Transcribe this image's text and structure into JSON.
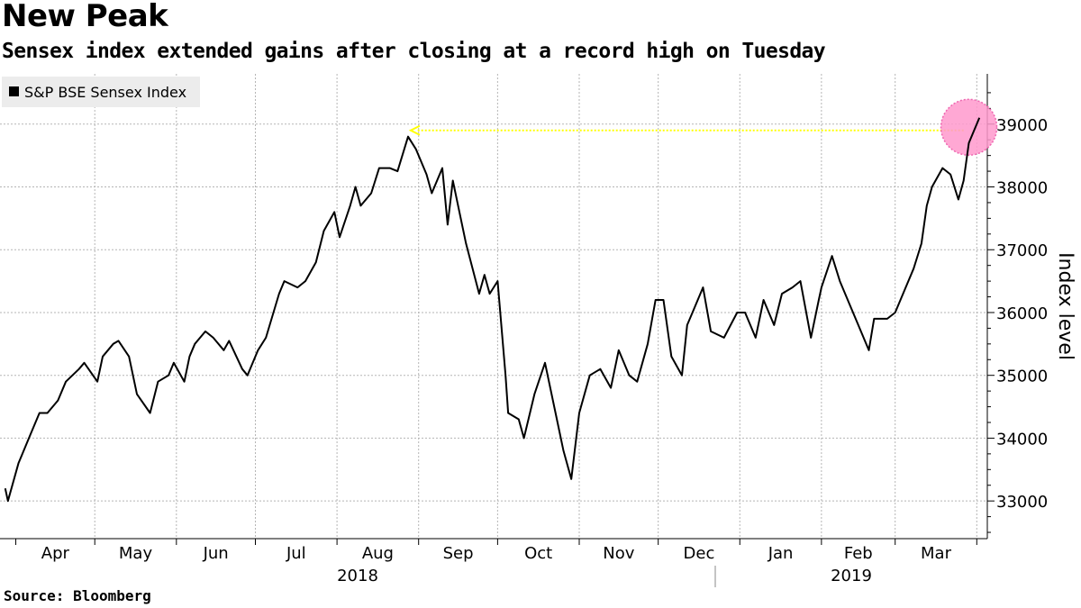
{
  "header": {
    "title": "New Peak",
    "subtitle": "Sensex index extended gains after closing at a record high on Tuesday"
  },
  "footer": {
    "source": "Source: Bloomberg"
  },
  "chart_data": {
    "type": "line",
    "title": "New Peak",
    "subtitle": "Sensex index extended gains after closing at a record high on Tuesday",
    "ylabel": "Index level",
    "xlabel": "",
    "ylim": [
      32400,
      39800
    ],
    "yticks": [
      33000,
      34000,
      35000,
      36000,
      37000,
      38000,
      39000
    ],
    "grid": true,
    "legend_position": "top-left",
    "months": [
      "Apr",
      "May",
      "Jun",
      "Jul",
      "Aug",
      "Sep",
      "Oct",
      "Nov",
      "Dec",
      "Jan",
      "Feb",
      "Mar"
    ],
    "years": [
      "2018",
      "2019"
    ],
    "series": [
      {
        "name": "S&P BSE Sensex Index",
        "color": "#000000",
        "x": [
          "2018-03-28",
          "2018-03-29",
          "2018-04-02",
          "2018-04-04",
          "2018-04-06",
          "2018-04-10",
          "2018-04-13",
          "2018-04-17",
          "2018-04-20",
          "2018-04-25",
          "2018-04-27",
          "2018-05-02",
          "2018-05-04",
          "2018-05-08",
          "2018-05-10",
          "2018-05-14",
          "2018-05-17",
          "2018-05-22",
          "2018-05-25",
          "2018-05-29",
          "2018-05-31",
          "2018-06-04",
          "2018-06-06",
          "2018-06-08",
          "2018-06-12",
          "2018-06-15",
          "2018-06-19",
          "2018-06-21",
          "2018-06-26",
          "2018-06-28",
          "2018-07-02",
          "2018-07-05",
          "2018-07-10",
          "2018-07-12",
          "2018-07-17",
          "2018-07-20",
          "2018-07-24",
          "2018-07-27",
          "2018-07-31",
          "2018-08-02",
          "2018-08-06",
          "2018-08-08",
          "2018-08-10",
          "2018-08-14",
          "2018-08-17",
          "2018-08-21",
          "2018-08-24",
          "2018-08-28",
          "2018-08-31",
          "2018-09-04",
          "2018-09-06",
          "2018-09-10",
          "2018-09-12",
          "2018-09-14",
          "2018-09-19",
          "2018-09-24",
          "2018-09-26",
          "2018-09-28",
          "2018-10-01",
          "2018-10-04",
          "2018-10-05",
          "2018-10-09",
          "2018-10-11",
          "2018-10-15",
          "2018-10-19",
          "2018-10-23",
          "2018-10-26",
          "2018-10-29",
          "2018-11-01",
          "2018-11-05",
          "2018-11-09",
          "2018-11-13",
          "2018-11-16",
          "2018-11-20",
          "2018-11-23",
          "2018-11-27",
          "2018-11-30",
          "2018-12-03",
          "2018-12-06",
          "2018-12-10",
          "2018-12-12",
          "2018-12-14",
          "2018-12-18",
          "2018-12-21",
          "2018-12-26",
          "2018-12-31",
          "2019-01-03",
          "2019-01-07",
          "2019-01-10",
          "2019-01-14",
          "2019-01-17",
          "2019-01-21",
          "2019-01-24",
          "2019-01-28",
          "2019-01-31",
          "2019-02-01",
          "2019-02-05",
          "2019-02-08",
          "2019-02-12",
          "2019-02-15",
          "2019-02-19",
          "2019-02-21",
          "2019-02-26",
          "2019-03-01",
          "2019-03-05",
          "2019-03-08",
          "2019-03-11",
          "2019-03-13",
          "2019-03-15",
          "2019-03-19",
          "2019-03-22",
          "2019-03-25",
          "2019-03-27",
          "2019-03-29",
          "2019-04-02"
        ],
        "y": [
          33200,
          33000,
          33600,
          33800,
          34000,
          34400,
          34400,
          34600,
          34900,
          35100,
          35200,
          34900,
          35300,
          35500,
          35550,
          35300,
          34700,
          34400,
          34900,
          35000,
          35200,
          34900,
          35300,
          35500,
          35700,
          35600,
          35400,
          35550,
          35100,
          35000,
          35400,
          35600,
          36300,
          36500,
          36400,
          36500,
          36800,
          37300,
          37600,
          37200,
          37700,
          38000,
          37700,
          37900,
          38300,
          38300,
          38250,
          38800,
          38600,
          38200,
          37900,
          38300,
          37400,
          38100,
          37100,
          36300,
          36600,
          36300,
          36500,
          35000,
          34400,
          34300,
          34000,
          34700,
          35200,
          34400,
          33800,
          33350,
          34400,
          35000,
          35100,
          34800,
          35400,
          35000,
          34900,
          35500,
          36200,
          36200,
          35300,
          35000,
          35800,
          36000,
          36400,
          35700,
          35600,
          36000,
          36000,
          35600,
          36200,
          35800,
          36300,
          36400,
          36500,
          35600,
          36200,
          36400,
          36900,
          36500,
          36100,
          35800,
          35400,
          35900,
          35900,
          36000,
          36400,
          36700,
          37100,
          37700,
          38000,
          38300,
          38200,
          37800,
          38100,
          38700,
          39100
        ]
      }
    ],
    "annotations": [
      {
        "type": "arrow",
        "from_date": "2019-03-27",
        "to_date": "2018-08-29",
        "level": 38900,
        "color": "#ffff00"
      },
      {
        "type": "highlight-circle",
        "date": "2019-03-29",
        "level": 38950,
        "color": "#ff99cc"
      }
    ],
    "axis_side": "right"
  }
}
